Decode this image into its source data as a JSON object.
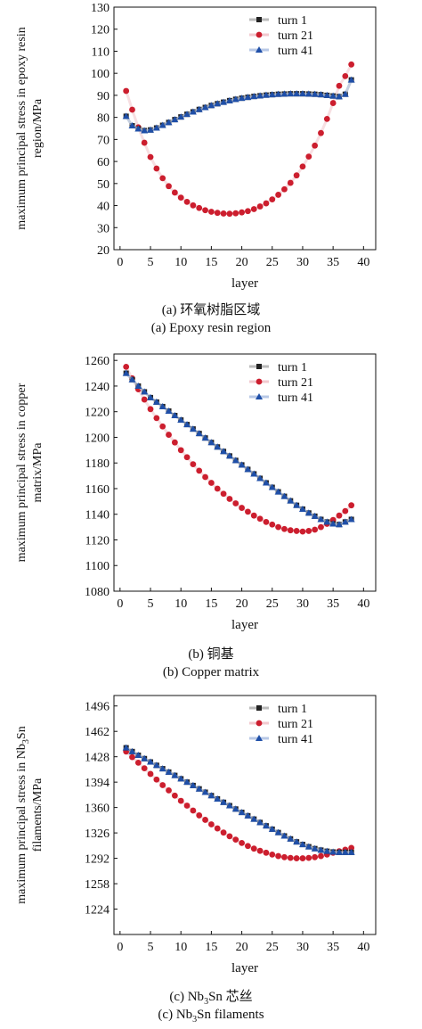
{
  "chart_data": [
    {
      "type": "line",
      "ylabel_lines": [
        "maximum principal stress in epoxy resin",
        "region/MPa"
      ],
      "xlabel": "layer",
      "ylim": [
        20,
        130
      ],
      "yticks": [
        20,
        30,
        40,
        50,
        60,
        70,
        80,
        90,
        100,
        110,
        120,
        130
      ],
      "xlim": [
        -1,
        42
      ],
      "xticks": [
        0,
        5,
        10,
        15,
        20,
        25,
        30,
        35,
        40
      ],
      "legend_position": "top-right",
      "caption_cn": "(a) 环氧树脂区域",
      "caption_en": "(a) Epoxy resin region",
      "series": [
        {
          "name": "turn 1",
          "color": "#222222",
          "marker": "square",
          "x": [
            1,
            2,
            3,
            4,
            5,
            6,
            7,
            8,
            9,
            10,
            11,
            12,
            13,
            14,
            15,
            16,
            17,
            18,
            19,
            20,
            21,
            22,
            23,
            24,
            25,
            26,
            27,
            28,
            29,
            30,
            31,
            32,
            33,
            34,
            35,
            36,
            37,
            38
          ],
          "values": [
            80.5,
            76.2,
            74.8,
            74.0,
            74.3,
            75.2,
            76.4,
            77.7,
            79.0,
            80.2,
            81.4,
            82.5,
            83.6,
            84.5,
            85.4,
            86.2,
            86.9,
            87.6,
            88.2,
            88.7,
            89.1,
            89.5,
            89.8,
            90.1,
            90.3,
            90.5,
            90.6,
            90.7,
            90.7,
            90.7,
            90.6,
            90.5,
            90.3,
            90.0,
            89.7,
            89.4,
            90.5,
            97.0
          ]
        },
        {
          "name": "turn 21",
          "color": "#cc1e2e",
          "marker": "circle",
          "x": [
            1,
            2,
            3,
            4,
            5,
            6,
            7,
            8,
            9,
            10,
            11,
            12,
            13,
            14,
            15,
            16,
            17,
            18,
            19,
            20,
            21,
            22,
            23,
            24,
            25,
            26,
            27,
            28,
            29,
            30,
            31,
            32,
            33,
            34,
            35,
            36,
            37,
            38
          ],
          "values": [
            92.0,
            83.5,
            75.5,
            68.5,
            62.0,
            56.8,
            52.4,
            48.8,
            45.9,
            43.6,
            41.7,
            40.1,
            38.9,
            37.9,
            37.2,
            36.7,
            36.4,
            36.3,
            36.5,
            36.9,
            37.5,
            38.4,
            39.6,
            41.0,
            42.8,
            44.9,
            47.4,
            50.3,
            53.7,
            57.7,
            62.2,
            67.2,
            72.9,
            79.3,
            86.5,
            94.3,
            98.7,
            104.0
          ]
        },
        {
          "name": "turn 41",
          "color": "#1f4fa8",
          "marker": "triangle",
          "x": [
            1,
            2,
            3,
            4,
            5,
            6,
            7,
            8,
            9,
            10,
            11,
            12,
            13,
            14,
            15,
            16,
            17,
            18,
            19,
            20,
            21,
            22,
            23,
            24,
            25,
            26,
            27,
            28,
            29,
            30,
            31,
            32,
            33,
            34,
            35,
            36,
            37,
            38
          ],
          "values": [
            80.5,
            76.2,
            74.8,
            74.0,
            74.3,
            75.2,
            76.4,
            77.7,
            79.0,
            80.2,
            81.4,
            82.5,
            83.6,
            84.5,
            85.4,
            86.2,
            86.9,
            87.6,
            88.2,
            88.7,
            89.1,
            89.5,
            89.8,
            90.1,
            90.3,
            90.5,
            90.6,
            90.7,
            90.7,
            90.7,
            90.6,
            90.5,
            90.3,
            90.0,
            89.7,
            89.4,
            90.5,
            97.0
          ]
        }
      ]
    },
    {
      "type": "line",
      "ylabel_lines": [
        "maximum principal stress in copper",
        "matrix/MPa"
      ],
      "xlabel": "layer",
      "ylim": [
        1080,
        1265
      ],
      "yticks": [
        1080,
        1100,
        1120,
        1140,
        1160,
        1180,
        1200,
        1220,
        1240,
        1260
      ],
      "xlim": [
        -1,
        42
      ],
      "xticks": [
        0,
        5,
        10,
        15,
        20,
        25,
        30,
        35,
        40
      ],
      "legend_position": "top-right",
      "caption_cn": "(b) 铜基",
      "caption_en": "(b) Copper matrix",
      "series": [
        {
          "name": "turn 1",
          "color": "#222222",
          "marker": "square",
          "x": [
            1,
            2,
            3,
            4,
            5,
            6,
            7,
            8,
            9,
            10,
            11,
            12,
            13,
            14,
            15,
            16,
            17,
            18,
            19,
            20,
            21,
            22,
            23,
            24,
            25,
            26,
            27,
            28,
            29,
            30,
            31,
            32,
            33,
            34,
            35,
            36,
            37,
            38
          ],
          "values": [
            1250.0,
            1245.0,
            1240.0,
            1235.5,
            1231.0,
            1227.5,
            1224.0,
            1220.5,
            1217.0,
            1213.5,
            1210.0,
            1206.5,
            1203.0,
            1199.5,
            1196.0,
            1192.5,
            1189.0,
            1185.5,
            1182.0,
            1178.5,
            1175.0,
            1171.5,
            1168.0,
            1164.5,
            1161.0,
            1157.5,
            1154.0,
            1150.5,
            1147.0,
            1144.0,
            1141.0,
            1138.5,
            1136.0,
            1134.0,
            1132.5,
            1132.0,
            1134.0,
            1136.0
          ]
        },
        {
          "name": "turn 21",
          "color": "#cc1e2e",
          "marker": "circle",
          "x": [
            1,
            2,
            3,
            4,
            5,
            6,
            7,
            8,
            9,
            10,
            11,
            12,
            13,
            14,
            15,
            16,
            17,
            18,
            19,
            20,
            21,
            22,
            23,
            24,
            25,
            26,
            27,
            28,
            29,
            30,
            31,
            32,
            33,
            34,
            35,
            36,
            37,
            38
          ],
          "values": [
            1255.0,
            1246.0,
            1237.5,
            1229.5,
            1222.0,
            1215.0,
            1208.5,
            1202.0,
            1196.0,
            1190.0,
            1184.5,
            1179.0,
            1174.0,
            1169.0,
            1164.5,
            1160.0,
            1156.0,
            1152.0,
            1148.5,
            1145.0,
            1142.0,
            1139.0,
            1136.5,
            1134.0,
            1132.0,
            1130.0,
            1128.5,
            1127.5,
            1127.0,
            1126.5,
            1127.0,
            1128.0,
            1130.0,
            1132.5,
            1135.5,
            1139.0,
            1142.5,
            1147.0
          ]
        },
        {
          "name": "turn 41",
          "color": "#1f4fa8",
          "marker": "triangle",
          "x": [
            1,
            2,
            3,
            4,
            5,
            6,
            7,
            8,
            9,
            10,
            11,
            12,
            13,
            14,
            15,
            16,
            17,
            18,
            19,
            20,
            21,
            22,
            23,
            24,
            25,
            26,
            27,
            28,
            29,
            30,
            31,
            32,
            33,
            34,
            35,
            36,
            37,
            38
          ],
          "values": [
            1250.0,
            1245.0,
            1240.0,
            1235.5,
            1231.0,
            1227.5,
            1224.0,
            1220.5,
            1217.0,
            1213.5,
            1210.0,
            1206.5,
            1203.0,
            1199.5,
            1196.0,
            1192.5,
            1189.0,
            1185.5,
            1182.0,
            1178.5,
            1175.0,
            1171.5,
            1168.0,
            1164.5,
            1161.0,
            1157.5,
            1154.0,
            1150.5,
            1147.0,
            1144.0,
            1141.0,
            1138.5,
            1136.0,
            1134.0,
            1132.5,
            1132.0,
            1134.0,
            1136.0
          ]
        }
      ]
    },
    {
      "type": "line",
      "ylabel_lines": [
        "maximum principal stress in Nb",
        "3",
        "Sn",
        "filaments/MPa"
      ],
      "xlabel": "layer",
      "ylim": [
        1190,
        1510
      ],
      "yticks": [
        1224,
        1258,
        1292,
        1326,
        1360,
        1394,
        1428,
        1462,
        1496
      ],
      "xlim": [
        -1,
        42
      ],
      "xticks": [
        0,
        5,
        10,
        15,
        20,
        25,
        30,
        35,
        40
      ],
      "legend_position": "top-right",
      "caption_cn": [
        "(c) Nb",
        "3",
        "Sn 芯丝"
      ],
      "caption_en": [
        "(c) Nb",
        "3",
        "Sn filaments"
      ],
      "series": [
        {
          "name": "turn 1",
          "color": "#222222",
          "marker": "square",
          "x": [
            1,
            2,
            3,
            4,
            5,
            6,
            7,
            8,
            9,
            10,
            11,
            12,
            13,
            14,
            15,
            16,
            17,
            18,
            19,
            20,
            21,
            22,
            23,
            24,
            25,
            26,
            27,
            28,
            29,
            30,
            31,
            32,
            33,
            34,
            35,
            36,
            37,
            38
          ],
          "values": [
            1440.0,
            1435.0,
            1430.0,
            1425.5,
            1421.0,
            1416.5,
            1412.0,
            1407.5,
            1403.0,
            1398.5,
            1394.0,
            1389.5,
            1385.0,
            1380.5,
            1376.0,
            1371.5,
            1367.0,
            1362.5,
            1358.0,
            1353.5,
            1349.0,
            1344.5,
            1340.0,
            1335.5,
            1331.0,
            1326.5,
            1322.0,
            1318.0,
            1314.0,
            1310.5,
            1307.5,
            1305.0,
            1303.0,
            1301.5,
            1300.5,
            1300.0,
            1300.0,
            1300.0
          ]
        },
        {
          "name": "turn 21",
          "color": "#cc1e2e",
          "marker": "circle",
          "x": [
            1,
            2,
            3,
            4,
            5,
            6,
            7,
            8,
            9,
            10,
            11,
            12,
            13,
            14,
            15,
            16,
            17,
            18,
            19,
            20,
            21,
            22,
            23,
            24,
            25,
            26,
            27,
            28,
            29,
            30,
            31,
            32,
            33,
            34,
            35,
            36,
            37,
            38
          ],
          "values": [
            1435.0,
            1427.5,
            1420.0,
            1412.5,
            1405.0,
            1397.5,
            1390.0,
            1383.0,
            1376.0,
            1369.0,
            1362.5,
            1356.0,
            1349.5,
            1343.5,
            1337.5,
            1332.0,
            1326.5,
            1321.5,
            1317.0,
            1312.5,
            1308.5,
            1305.0,
            1302.0,
            1299.5,
            1297.0,
            1295.0,
            1293.5,
            1292.5,
            1292.0,
            1292.0,
            1292.5,
            1293.5,
            1295.0,
            1297.0,
            1299.5,
            1301.5,
            1303.5,
            1306.0
          ]
        },
        {
          "name": "turn 41",
          "color": "#1f4fa8",
          "marker": "triangle",
          "x": [
            1,
            2,
            3,
            4,
            5,
            6,
            7,
            8,
            9,
            10,
            11,
            12,
            13,
            14,
            15,
            16,
            17,
            18,
            19,
            20,
            21,
            22,
            23,
            24,
            25,
            26,
            27,
            28,
            29,
            30,
            31,
            32,
            33,
            34,
            35,
            36,
            37,
            38
          ],
          "values": [
            1440.0,
            1435.0,
            1430.0,
            1425.5,
            1421.0,
            1416.5,
            1412.0,
            1407.5,
            1403.0,
            1398.5,
            1394.0,
            1389.5,
            1385.0,
            1380.5,
            1376.0,
            1371.5,
            1367.0,
            1362.5,
            1358.0,
            1353.5,
            1349.0,
            1344.5,
            1340.0,
            1335.5,
            1331.0,
            1326.5,
            1322.0,
            1318.0,
            1314.0,
            1310.5,
            1307.5,
            1305.0,
            1303.0,
            1301.5,
            1300.5,
            1300.0,
            1300.0,
            1300.0
          ]
        }
      ]
    }
  ]
}
